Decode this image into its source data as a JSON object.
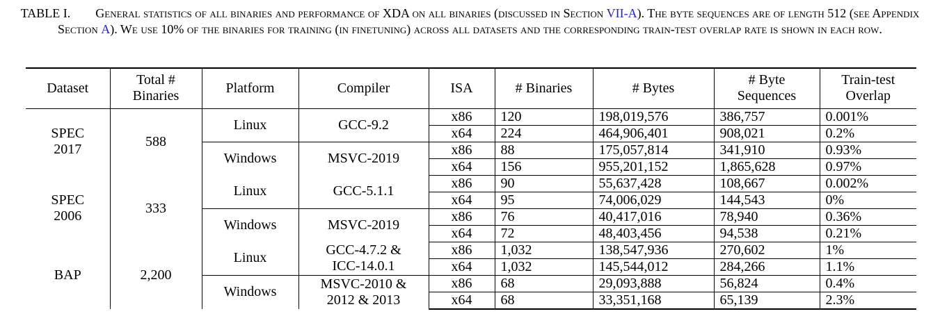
{
  "caption": {
    "label": "TABLE I.",
    "text_a": "General statistics of all binaries and performance of XDA on all binaries (discussed in Section ",
    "ref1": "VII-A",
    "text_b": "). The byte sequences are of length 512 (see Appendix Section ",
    "ref2": "A",
    "text_c": "). We use 10% of the binaries for training (in finetuning) across all datasets and the corresponding train-test overlap rate is shown in each row."
  },
  "table": {
    "headers": {
      "dataset": "Dataset",
      "total_1": "Total #",
      "total_2": "Binaries",
      "platform": "Platform",
      "compiler": "Compiler",
      "isa": "ISA",
      "binaries": "# Binaries",
      "bytes": "# Bytes",
      "byteseq_1": "# Byte",
      "byteseq_2": "Sequences",
      "overlap_1": "Train-test",
      "overlap_2": "Overlap"
    },
    "groups": [
      {
        "dataset_1": "SPEC",
        "dataset_2": "2017",
        "total": "588",
        "platforms": [
          {
            "name": "Linux",
            "compiler_1": "GCC-9.2",
            "compiler_2": "",
            "rows": [
              {
                "isa": "x86",
                "binaries": "120",
                "bytes": "198,019,576",
                "seqs": "386,757",
                "overlap": "0.001%"
              },
              {
                "isa": "x64",
                "binaries": "224",
                "bytes": "464,906,401",
                "seqs": "908,021",
                "overlap": "0.2%"
              }
            ]
          },
          {
            "name": "Windows",
            "compiler_1": "MSVC-2019",
            "compiler_2": "",
            "rows": [
              {
                "isa": "x86",
                "binaries": "88",
                "bytes": "175,057,814",
                "seqs": "341,910",
                "overlap": "0.93%"
              },
              {
                "isa": "x64",
                "binaries": "156",
                "bytes": "955,201,152",
                "seqs": "1,865,628",
                "overlap": "0.97%"
              }
            ]
          }
        ]
      },
      {
        "dataset_1": "SPEC",
        "dataset_2": "2006",
        "total": "333",
        "platforms": [
          {
            "name": "Linux",
            "compiler_1": "GCC-5.1.1",
            "compiler_2": "",
            "rows": [
              {
                "isa": "x86",
                "binaries": "90",
                "bytes": "55,637,428",
                "seqs": "108,667",
                "overlap": "0.002%"
              },
              {
                "isa": "x64",
                "binaries": "95",
                "bytes": "74,006,029",
                "seqs": "144,543",
                "overlap": "0%"
              }
            ]
          },
          {
            "name": "Windows",
            "compiler_1": "MSVC-2019",
            "compiler_2": "",
            "rows": [
              {
                "isa": "x86",
                "binaries": "76",
                "bytes": "40,417,016",
                "seqs": "78,940",
                "overlap": "0.36%"
              },
              {
                "isa": "x64",
                "binaries": "72",
                "bytes": "48,403,456",
                "seqs": "94,538",
                "overlap": "0.21%"
              }
            ]
          }
        ]
      },
      {
        "dataset_1": "BAP",
        "dataset_2": "",
        "total": "2,200",
        "platforms": [
          {
            "name": "Linux",
            "compiler_1": "GCC-4.7.2 &",
            "compiler_2": "ICC-14.0.1",
            "rows": [
              {
                "isa": "x86",
                "binaries": "1,032",
                "bytes": "138,547,936",
                "seqs": "270,602",
                "overlap": "1%"
              },
              {
                "isa": "x64",
                "binaries": "1,032",
                "bytes": "145,544,012",
                "seqs": "284,266",
                "overlap": "1.1%"
              }
            ]
          },
          {
            "name": "Windows",
            "compiler_1": "MSVC-2010 &",
            "compiler_2": "2012 & 2013",
            "rows": [
              {
                "isa": "x86",
                "binaries": "68",
                "bytes": "29,093,888",
                "seqs": "56,824",
                "overlap": "0.4%"
              },
              {
                "isa": "x64",
                "binaries": "68",
                "bytes": "33,351,168",
                "seqs": "65,139",
                "overlap": "2.3%"
              }
            ]
          }
        ]
      }
    ]
  },
  "colors": {
    "link": "#1f1fd6"
  }
}
